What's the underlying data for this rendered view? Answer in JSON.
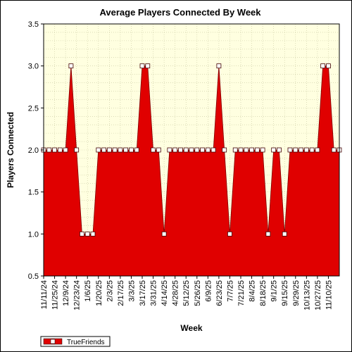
{
  "chart_data": {
    "type": "area",
    "title": "Average Players Connected By Week",
    "xlabel": "Week",
    "ylabel": "Players Connected",
    "ylim": [
      0.5,
      3.5
    ],
    "yticks": [
      "0.5",
      "1.0",
      "1.5",
      "2.0",
      "2.5",
      "3.0",
      "3.5"
    ],
    "grid": true,
    "legend_position": "bottom-left",
    "x_tick_labels": [
      "11/11/24",
      "11/25/24",
      "12/9/24",
      "12/23/24",
      "1/6/25",
      "1/20/25",
      "2/3/25",
      "2/17/25",
      "3/3/25",
      "3/17/25",
      "3/31/25",
      "4/14/25",
      "4/28/25",
      "5/12/25",
      "5/26/25",
      "6/9/25",
      "6/23/25",
      "7/7/25",
      "7/21/25",
      "8/4/25",
      "8/18/25",
      "9/1/25",
      "9/15/25",
      "9/29/25",
      "10/13/25",
      "10/27/25",
      "11/10/25"
    ],
    "series": [
      {
        "name": "TrueFriends",
        "color": "#e00000",
        "values": [
          2,
          2,
          2,
          2,
          2,
          3,
          2,
          1,
          1,
          1,
          2,
          2,
          2,
          2,
          2,
          2,
          2,
          2,
          3,
          3,
          2,
          2,
          1,
          2,
          2,
          2,
          2,
          2,
          2,
          2,
          2,
          2,
          3,
          2,
          1,
          2,
          2,
          2,
          2,
          2,
          2,
          1,
          2,
          2,
          1,
          2,
          2,
          2,
          2,
          2,
          2,
          3,
          3,
          2,
          2
        ]
      }
    ]
  }
}
